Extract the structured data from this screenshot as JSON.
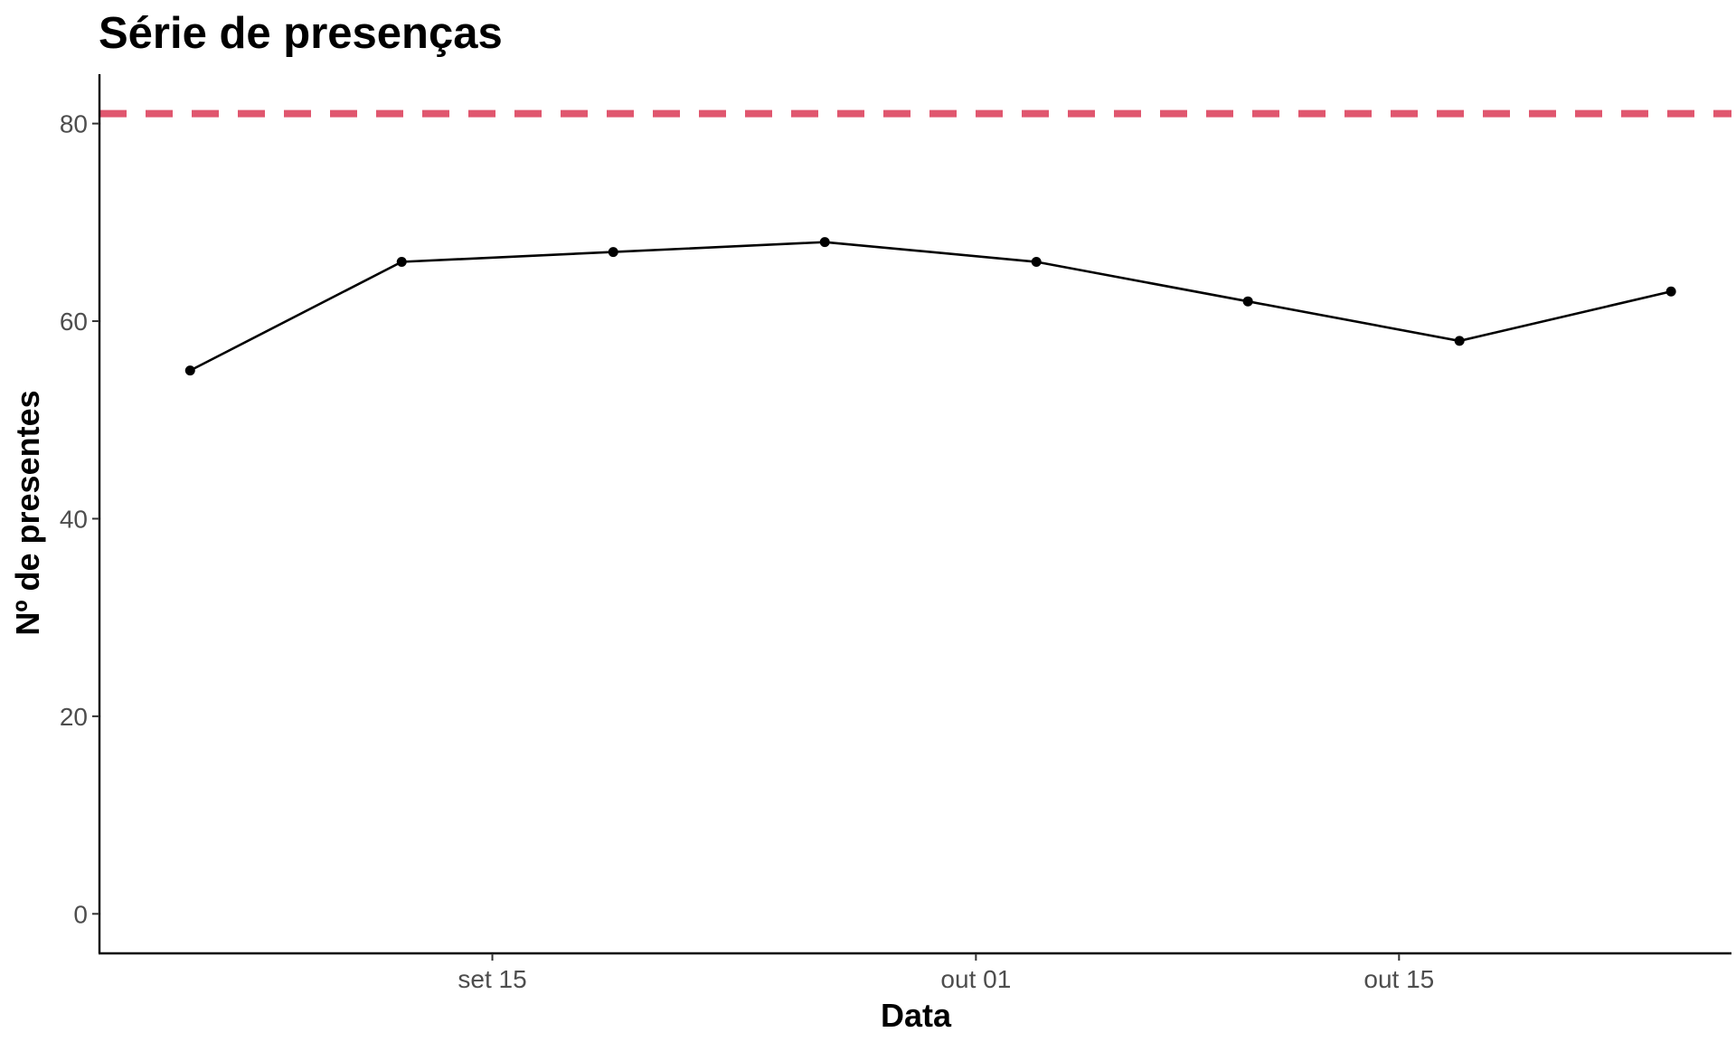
{
  "chart_data": {
    "type": "line",
    "title": "Série de presenças",
    "xlabel": "Data",
    "ylabel": "Nº de presentes",
    "x": [
      "2023-09-05",
      "2023-09-12",
      "2023-09-19",
      "2023-09-26",
      "2023-10-03",
      "2023-10-10",
      "2023-10-17",
      "2023-10-24"
    ],
    "series": [
      {
        "values": [
          55,
          66,
          67,
          68,
          66,
          62,
          58,
          63
        ],
        "color": "#000000"
      }
    ],
    "reference_line": {
      "y": 81,
      "style": "dashed",
      "color": "#e0566e"
    },
    "xlim": [
      "2023-09-02",
      "2023-10-26"
    ],
    "ylim": [
      -4,
      85
    ],
    "xticks": [
      {
        "date": "2023-09-15",
        "label": "set 15"
      },
      {
        "date": "2023-10-01",
        "label": "out 01"
      },
      {
        "date": "2023-10-15",
        "label": "out 15"
      }
    ],
    "yticks": [
      0,
      20,
      40,
      60,
      80
    ],
    "grid": false,
    "legend": "none"
  }
}
